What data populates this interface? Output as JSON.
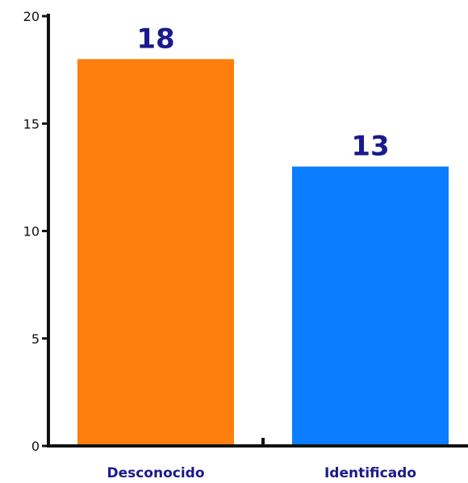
{
  "chart_data": {
    "type": "bar",
    "categories": [
      "Desconocido",
      "Identificado"
    ],
    "values": [
      18,
      13
    ],
    "data_labels": [
      "18",
      "13"
    ],
    "bar_colors": [
      "#FF7F0E",
      "#0A7CFF"
    ],
    "label_color": "#1A1A8C",
    "title": "",
    "xlabel": "",
    "ylabel": "",
    "ylim": [
      0,
      20
    ],
    "yticks": [
      0,
      5,
      10,
      15,
      20
    ],
    "grid": false,
    "legend": "none"
  }
}
